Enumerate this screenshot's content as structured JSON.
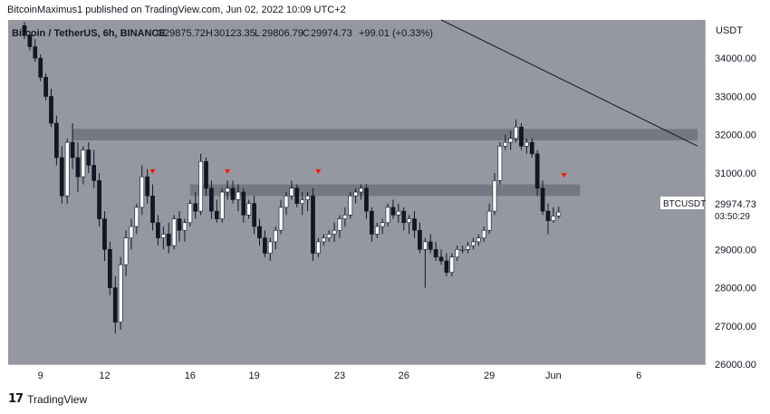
{
  "publisher_line": "BitcoinMaximus1 published on TradingView.com, Jun 02, 2022 10:09 UTC+2",
  "legend": {
    "symbol": "Bitcoin / TetherUS, 6h, BINANCE",
    "o_label": "O",
    "o_value": "29875.72",
    "h_label": "H",
    "h_value": "30123.35",
    "l_label": "L",
    "l_value": "29806.79",
    "c_label": "C",
    "c_value": "29974.73",
    "change": "+99.01 (+0.33%)"
  },
  "currency_label": "USDT",
  "price_tag": {
    "symbol": "BTCUSDT",
    "price": "29974.73",
    "countdown": "03:50:29"
  },
  "footer": {
    "logo_mark": "17",
    "brand": "TradingView"
  },
  "colors": {
    "background": "#9598a1",
    "axis_bg": "#ffffff",
    "up_candle": "#ffffff",
    "down_candle": "#131722",
    "zone": "#6a6d78",
    "marker": "#ff1100",
    "trendline": "#131722"
  },
  "chart_data": {
    "type": "candlestick",
    "title": "Bitcoin / TetherUS, 6h, BINANCE",
    "ylim": [
      26000,
      35000
    ],
    "y_ticks": [
      "34000.00",
      "33000.00",
      "32000.00",
      "31000.00",
      "30000.00",
      "29000.00",
      "28000.00",
      "27000.00",
      "26000.00"
    ],
    "x_ticks": [
      "9",
      "12",
      "16",
      "19",
      "23",
      "26",
      "29",
      "Jun",
      "6"
    ],
    "candles": [
      [
        34850,
        34950,
        34500,
        34600
      ],
      [
        34600,
        34700,
        34200,
        34300
      ],
      [
        34300,
        34500,
        33900,
        34000
      ],
      [
        34000,
        34100,
        33400,
        33500
      ],
      [
        33500,
        33600,
        32900,
        33000
      ],
      [
        33000,
        33200,
        32200,
        32300
      ],
      [
        32300,
        32500,
        31200,
        31400
      ],
      [
        31400,
        31700,
        30200,
        30400
      ],
      [
        30400,
        31900,
        30200,
        31800
      ],
      [
        31800,
        32300,
        31100,
        31400
      ],
      [
        31400,
        31800,
        30500,
        30900
      ],
      [
        30900,
        31700,
        30700,
        31600
      ],
      [
        31600,
        31800,
        31000,
        31200
      ],
      [
        31200,
        31600,
        30600,
        30800
      ],
      [
        30800,
        31000,
        29600,
        29800
      ],
      [
        29800,
        30000,
        28700,
        29000
      ],
      [
        29000,
        29200,
        27800,
        28000
      ],
      [
        28000,
        28300,
        26800,
        27100
      ],
      [
        27100,
        28800,
        26900,
        28600
      ],
      [
        28600,
        29500,
        28300,
        29300
      ],
      [
        29300,
        29800,
        29000,
        29600
      ],
      [
        29600,
        30200,
        29400,
        30100
      ],
      [
        30100,
        31200,
        29900,
        30900
      ],
      [
        30900,
        31100,
        30200,
        30400
      ],
      [
        30400,
        30700,
        29500,
        29700
      ],
      [
        29700,
        29900,
        29100,
        29300
      ],
      [
        29300,
        29600,
        29000,
        29400
      ],
      [
        29400,
        29700,
        28900,
        29100
      ],
      [
        29100,
        29900,
        29000,
        29800
      ],
      [
        29800,
        30000,
        29200,
        29500
      ],
      [
        29500,
        29800,
        29200,
        29700
      ],
      [
        29700,
        30300,
        29600,
        30200
      ],
      [
        30200,
        30500,
        29800,
        30000
      ],
      [
        30000,
        31500,
        29900,
        31300
      ],
      [
        31300,
        31400,
        30400,
        30600
      ],
      [
        30600,
        30800,
        29800,
        30000
      ],
      [
        30000,
        30300,
        29700,
        29800
      ],
      [
        29800,
        30600,
        29700,
        30500
      ],
      [
        30500,
        30800,
        30300,
        30600
      ],
      [
        30600,
        30800,
        30200,
        30300
      ],
      [
        30300,
        30700,
        30000,
        30500
      ],
      [
        30500,
        30600,
        29700,
        29900
      ],
      [
        29900,
        30300,
        29800,
        30200
      ],
      [
        30200,
        30400,
        29400,
        29600
      ],
      [
        29600,
        29800,
        29100,
        29300
      ],
      [
        29300,
        29500,
        28800,
        28900
      ],
      [
        28900,
        29300,
        28700,
        29200
      ],
      [
        29200,
        29600,
        29000,
        29500
      ],
      [
        29500,
        30300,
        29400,
        30100
      ],
      [
        30100,
        30500,
        29900,
        30400
      ],
      [
        30400,
        30800,
        30300,
        30600
      ],
      [
        30600,
        30700,
        30100,
        30200
      ],
      [
        30200,
        30500,
        29900,
        30300
      ],
      [
        30300,
        30500,
        30000,
        30400
      ],
      [
        30400,
        30600,
        28700,
        28900
      ],
      [
        28900,
        29300,
        28800,
        29200
      ],
      [
        29200,
        29400,
        29100,
        29300
      ],
      [
        29300,
        29500,
        29200,
        29400
      ],
      [
        29400,
        29700,
        29200,
        29500
      ],
      [
        29500,
        29900,
        29300,
        29800
      ],
      [
        29800,
        30100,
        29600,
        29900
      ],
      [
        29900,
        30500,
        29800,
        30400
      ],
      [
        30400,
        30600,
        30200,
        30500
      ],
      [
        30500,
        30700,
        30300,
        30600
      ],
      [
        30600,
        30700,
        29800,
        30000
      ],
      [
        30000,
        30100,
        29200,
        29400
      ],
      [
        29400,
        29700,
        29300,
        29600
      ],
      [
        29600,
        29800,
        29400,
        29700
      ],
      [
        29700,
        30200,
        29600,
        30100
      ],
      [
        30100,
        30300,
        29800,
        29900
      ],
      [
        29900,
        30200,
        29700,
        30000
      ],
      [
        30000,
        30100,
        29500,
        29700
      ],
      [
        29700,
        29900,
        29400,
        29800
      ],
      [
        29800,
        30000,
        29300,
        29500
      ],
      [
        29500,
        29700,
        28900,
        29000
      ],
      [
        29000,
        29300,
        28000,
        29200
      ],
      [
        29200,
        29400,
        28900,
        29000
      ],
      [
        29000,
        29200,
        28700,
        28800
      ],
      [
        28800,
        29000,
        28600,
        28700
      ],
      [
        28700,
        28900,
        28300,
        28400
      ],
      [
        28400,
        28900,
        28300,
        28800
      ],
      [
        28800,
        29100,
        28700,
        29000
      ],
      [
        29000,
        29100,
        28900,
        29000
      ],
      [
        29000,
        29200,
        28900,
        29100
      ],
      [
        29100,
        29300,
        29000,
        29200
      ],
      [
        29200,
        29400,
        29100,
        29300
      ],
      [
        29300,
        29600,
        29200,
        29500
      ],
      [
        29500,
        30200,
        29400,
        30000
      ],
      [
        30000,
        31000,
        29900,
        30800
      ],
      [
        30800,
        31800,
        30700,
        31700
      ],
      [
        31700,
        32000,
        31600,
        31800
      ],
      [
        31800,
        32100,
        31600,
        31900
      ],
      [
        31900,
        32400,
        31800,
        32200
      ],
      [
        32200,
        32300,
        31600,
        31700
      ],
      [
        31700,
        31900,
        31500,
        31800
      ],
      [
        31800,
        31900,
        31400,
        31500
      ],
      [
        31500,
        31600,
        30400,
        30600
      ],
      [
        30600,
        30800,
        29900,
        30000
      ],
      [
        30000,
        30200,
        29400,
        29750
      ],
      [
        29750,
        30100,
        29700,
        29875
      ],
      [
        29875,
        30123,
        29807,
        29975
      ]
    ],
    "resistance_zones": [
      {
        "low": 31850,
        "high": 32150
      },
      {
        "low": 30400,
        "high": 30700
      }
    ],
    "resistance_markers": [
      {
        "candle_index": 24,
        "price": 31000
      },
      {
        "candle_index": 38,
        "price": 31000
      },
      {
        "candle_index": 55,
        "price": 31000
      },
      {
        "candle_index": 101,
        "price": 30900
      }
    ],
    "descending_trendline": {
      "points": [
        {
          "candle_index": 78,
          "price": 35000
        },
        {
          "candle_index": 126,
          "price": 31700
        }
      ]
    }
  }
}
